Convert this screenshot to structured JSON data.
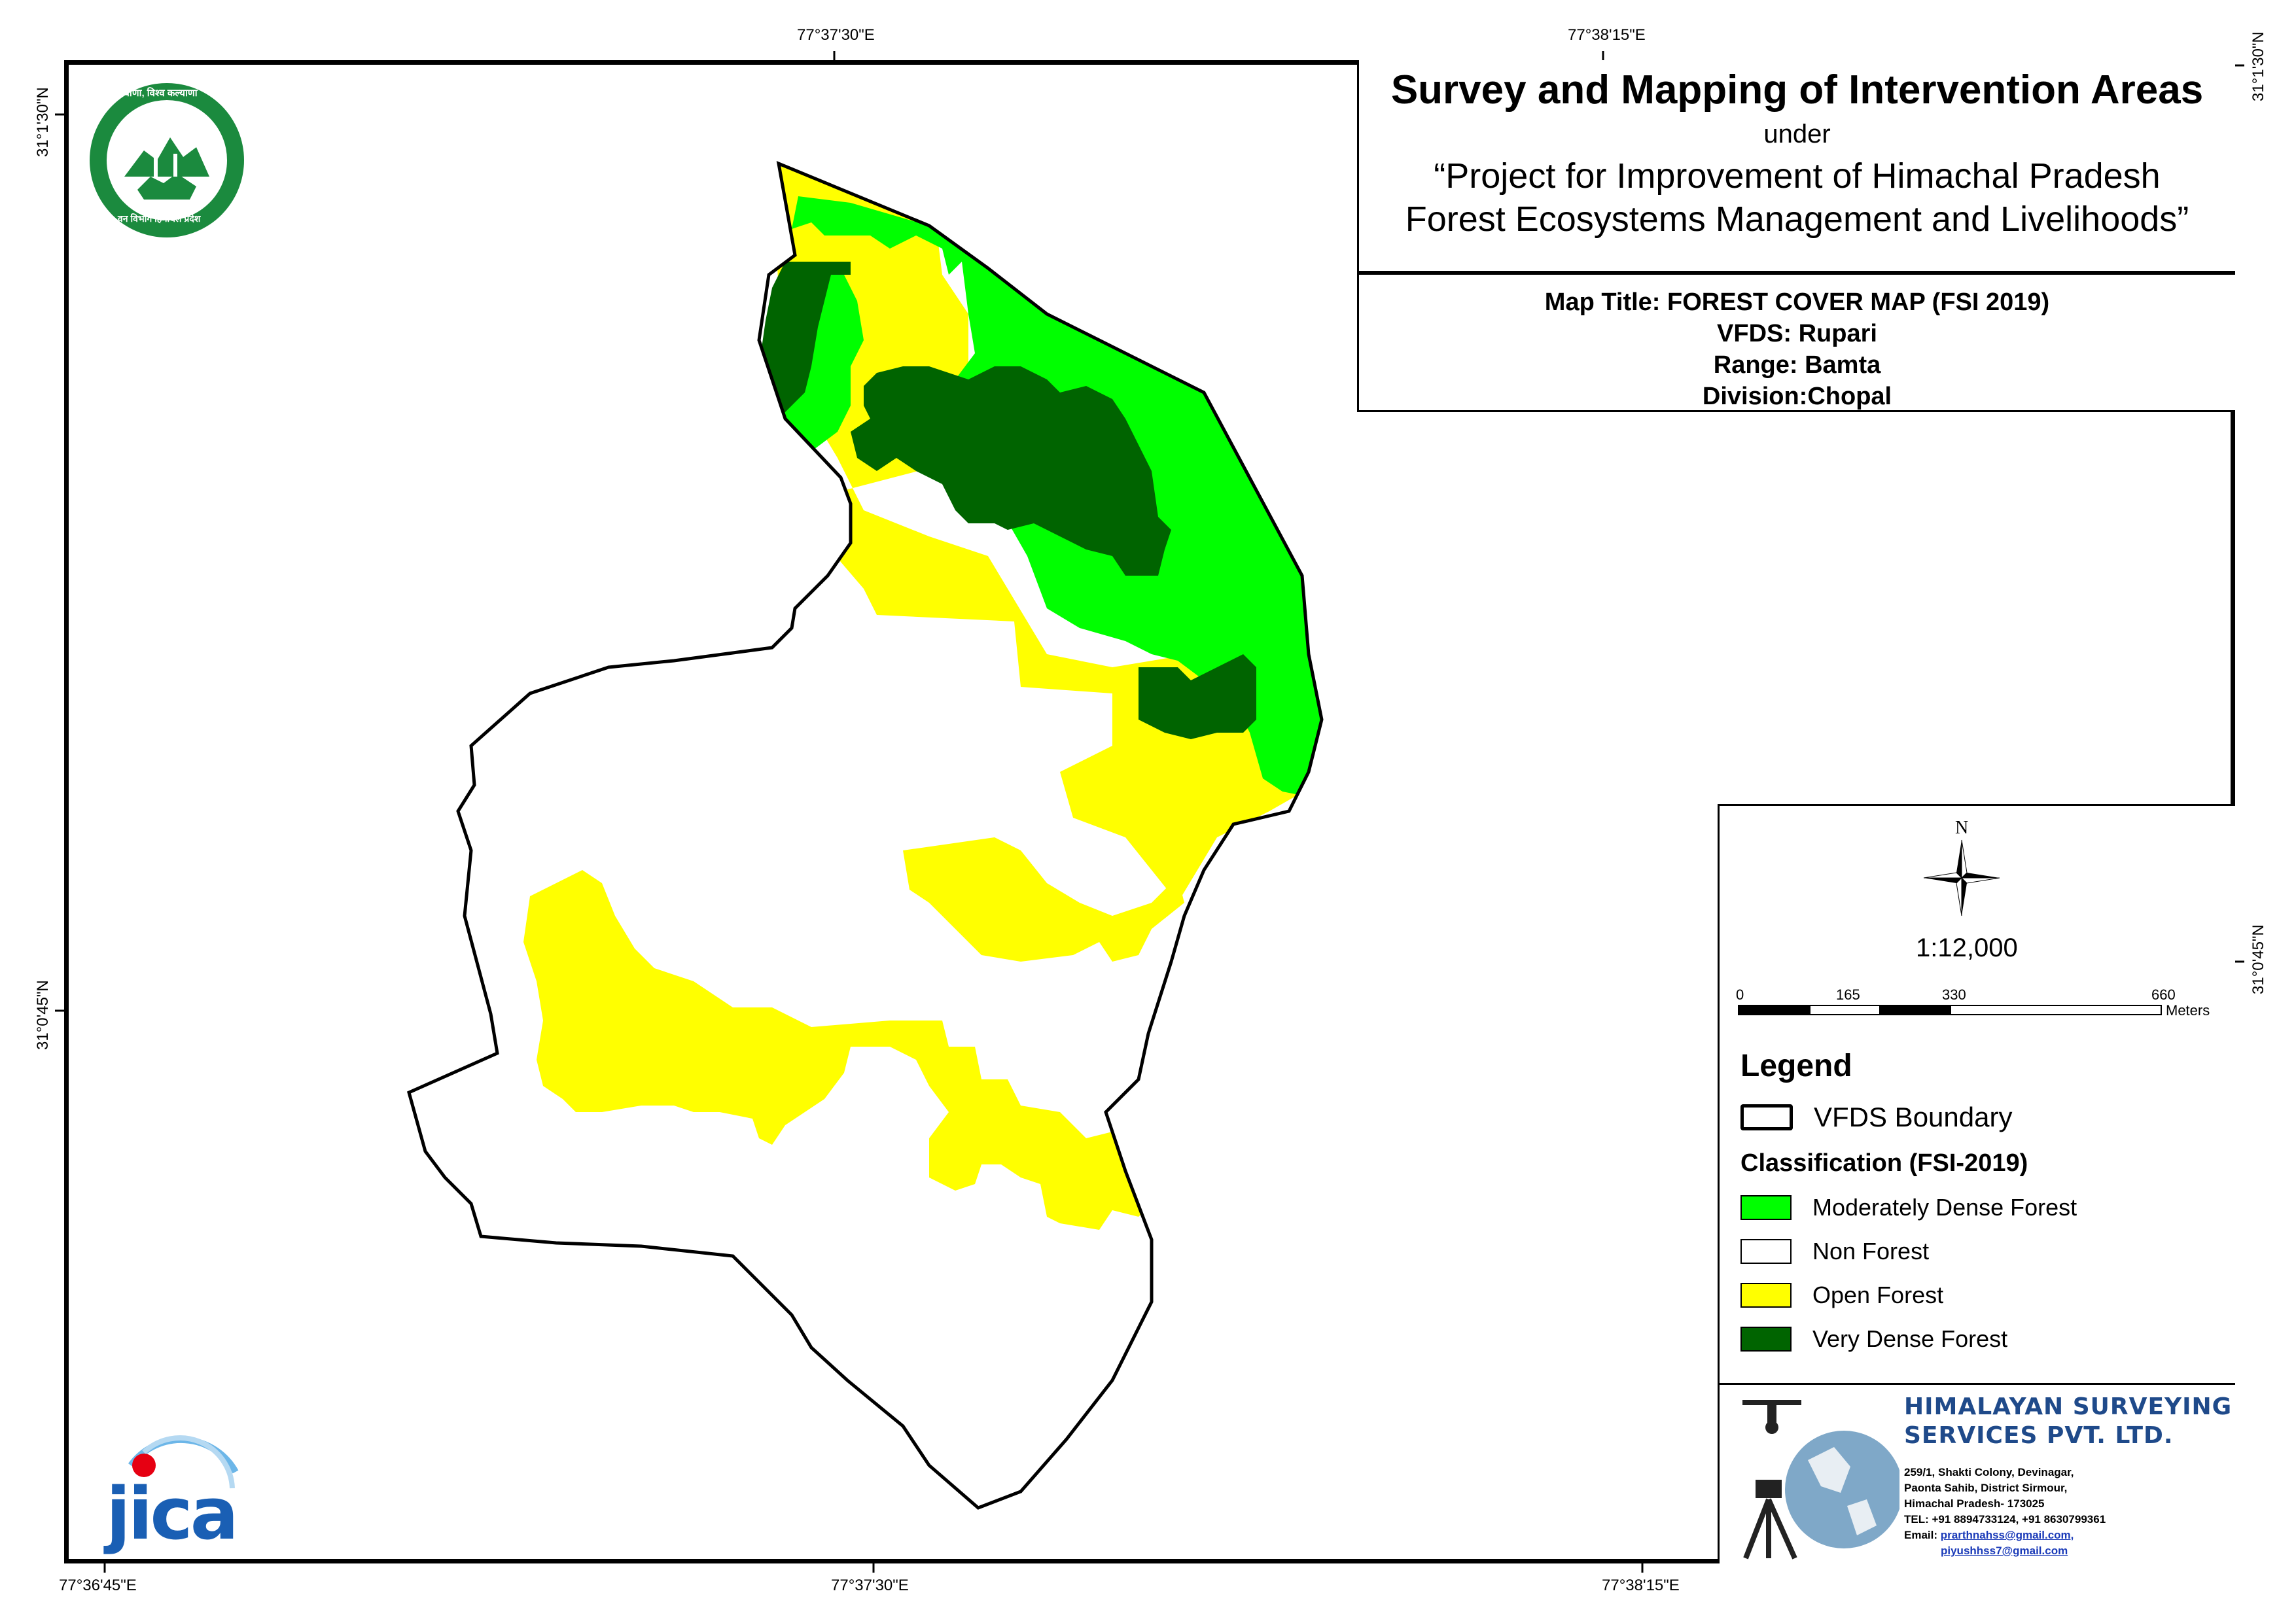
{
  "title": {
    "main": "Survey and Mapping of Intervention Areas",
    "under": "under",
    "project_line1": "“Project for Improvement of Himachal Pradesh",
    "project_line2": "Forest Ecosystems Management and Livelihoods”"
  },
  "info": {
    "map_title": "Map Title: FOREST COVER MAP (FSI 2019)",
    "vfds": "VFDS: Rupari",
    "range": "Range: Bamta",
    "division": "Division:Chopal"
  },
  "coordinates": {
    "top": [
      "77°37'30\"E",
      "77°38'15\"E"
    ],
    "bottom": [
      "77°36'45\"E",
      "77°37'30\"E",
      "77°38'15\"E"
    ],
    "left": [
      "31°1'30\"N",
      "31°0'45\"N"
    ],
    "right": [
      "31°1'30\"N",
      "31°0'45\"N"
    ]
  },
  "north_arrow": {
    "label": "N",
    "icon": "compass-rose-icon"
  },
  "scale": {
    "ratio": "1:12,000",
    "ticks": [
      "0",
      "165",
      "330",
      "660"
    ],
    "unit": "Meters"
  },
  "legend": {
    "title": "Legend",
    "boundary_label": "VFDS Boundary",
    "classification_title": "Classification (FSI-2019)",
    "classes": [
      {
        "label": "Moderately Dense Forest",
        "color": "#00ff00"
      },
      {
        "label": "Non Forest",
        "color": "#ffffff"
      },
      {
        "label": "Open Forest",
        "color": "#ffff00"
      },
      {
        "label": "Very Dense Forest",
        "color": "#006400"
      }
    ]
  },
  "company": {
    "name_line1": "HIMALAYAN SURVEYING",
    "name_line2": "SERVICES PVT. LTD.",
    "address1": "259/1, Shakti Colony, Devinagar,",
    "address2": "Paonta Sahib, District Sirmour,",
    "address3": "Himachal Pradesh- 173025",
    "tel": "TEL: +91 8894733124, +91 8630799361",
    "email_prefix": "Email: ",
    "email1": "prarthnahss@gmail.com,",
    "email2": "piyushhss7@gmail.com"
  },
  "logos": {
    "forest_dept_text_top": "वन श्री वाणा, विश्व कल्याणा",
    "forest_dept_text_bottom": "वन विभाग हिमाचल प्रदेश",
    "jica": "jica"
  }
}
